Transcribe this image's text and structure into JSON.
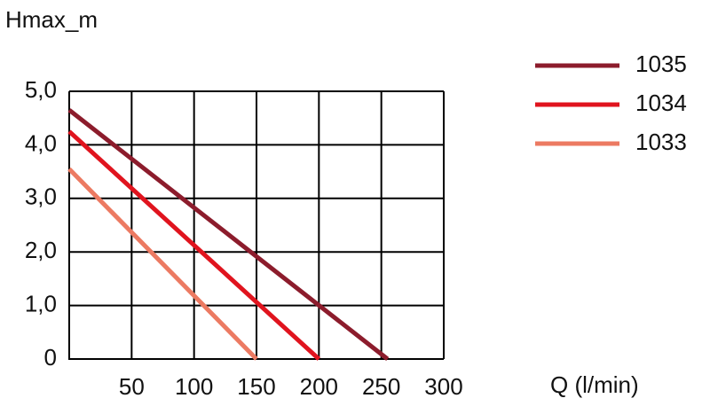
{
  "chart_data": {
    "type": "line",
    "y_label": "Hmax_m",
    "x_label": "Q (l/min)",
    "xlim": [
      0,
      300
    ],
    "ylim": [
      0,
      5
    ],
    "xticks": [
      50,
      100,
      150,
      200,
      250,
      300
    ],
    "yticks": [
      {
        "value": 0,
        "label": "0"
      },
      {
        "value": 1,
        "label": "1,0"
      },
      {
        "value": 2,
        "label": "2,0"
      },
      {
        "value": 3,
        "label": "3,0"
      },
      {
        "value": 4,
        "label": "4,0"
      },
      {
        "value": 5,
        "label": "5,0"
      }
    ],
    "grid": true,
    "legend": "upper right",
    "series": [
      {
        "name": "1035",
        "color": "#8c1c2c",
        "x": [
          0,
          255
        ],
        "values": [
          4.65,
          0
        ]
      },
      {
        "name": "1034",
        "color": "#e0141e",
        "x": [
          0,
          200
        ],
        "values": [
          4.25,
          0
        ]
      },
      {
        "name": "1033",
        "color": "#ec7a62",
        "x": [
          0,
          150
        ],
        "values": [
          3.55,
          0
        ]
      }
    ]
  }
}
